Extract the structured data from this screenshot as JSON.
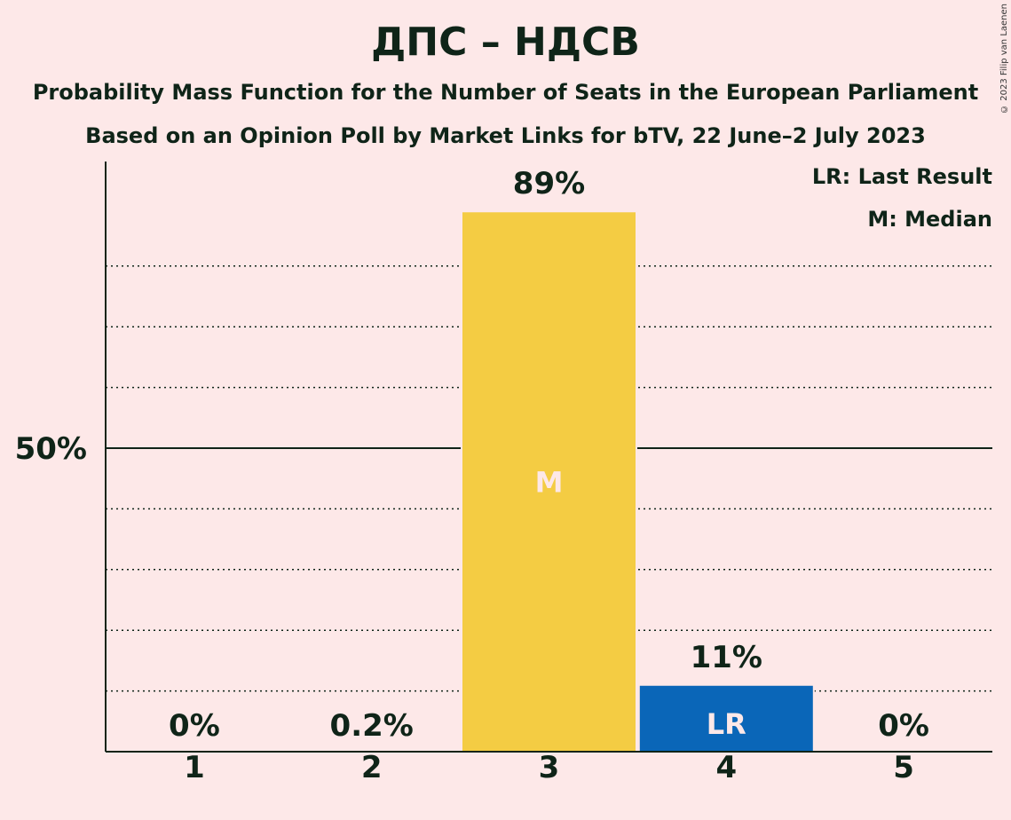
{
  "title": "ДПС – НДСВ",
  "subtitle1": "Probability Mass Function for the Number of Seats in the European Parliament",
  "subtitle2": "Based on an Opinion Poll by Market Links for bTV, 22 June–2 July 2023",
  "copyright": "© 2023 Filip van Laenen",
  "legend": {
    "lr": "LR: Last Result",
    "m": "M: Median"
  },
  "colors": {
    "median_bar": "#f4cc43",
    "last_result_bar": "#0a66b8",
    "axis": "#0f2418",
    "background": "#fde8e8"
  },
  "chart_data": {
    "type": "bar",
    "categories": [
      "1",
      "2",
      "3",
      "4",
      "5"
    ],
    "values": [
      0,
      0.2,
      89,
      11,
      0
    ],
    "value_labels": [
      "0%",
      "0.2%",
      "89%",
      "11%",
      "0%"
    ],
    "bar_markers": [
      "",
      "",
      "M",
      "LR",
      ""
    ],
    "ylim": [
      0,
      97
    ],
    "y_ticks": [
      {
        "value": 50,
        "label": "50%"
      }
    ],
    "gridlines_dotted": [
      10,
      20,
      30,
      40,
      60,
      70,
      80
    ],
    "gridline_solid": 50,
    "legend_position": "top-right"
  }
}
